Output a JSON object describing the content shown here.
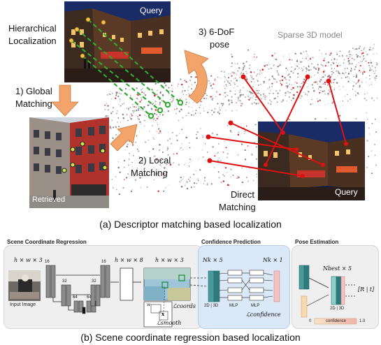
{
  "top": {
    "hierarchical_label_line1": "Hierarchical",
    "hierarchical_label_line2": "Localization",
    "query_tag_top": "Query",
    "global_step_line1": "1) Global",
    "global_step_line2": "Matching",
    "local_step_line1": "2) Local",
    "local_step_line2": "Matching",
    "pose_step_line1": "3) 6-DoF",
    "pose_step_line2": "pose",
    "sparse_model_label": "Sparse 3D model",
    "retrieved_tag": "Retrieved",
    "direct_label_line1": "Direct",
    "direct_label_line2": "Matching",
    "query_tag_bottom": "Query",
    "caption": "(a) Descriptor matching based localization"
  },
  "bottom": {
    "scr_title": "Scene Coordinate Regression",
    "conf_title": "Confidence Prediction",
    "pose_title": "Pose Estimation",
    "input_dim": "h × w × 3",
    "feat_dim": "h × w × 8",
    "out_dim": "h × w × 3",
    "input_image_label": "Input Image",
    "ch16a": "16",
    "ch32a": "32",
    "ch64a": "64",
    "ch64b": "64",
    "ch32b": "32",
    "ch16b": "16",
    "w_label": "w",
    "x_label": "x",
    "smooth_loss": "ℒsmooth",
    "coords_loss": "ℒcoords",
    "nk5": "Nk × 5",
    "nk1": "Nk × 1",
    "twod3d_a": "2D | 3D",
    "mlp_a": "MLP",
    "mlp_b": "MLP",
    "conf_loss": "ℒconfidence",
    "nbest": "Nbest × 5",
    "twod3d_b": "2D | 3D",
    "rt": "[R | t]",
    "conf_zero": "0",
    "conf_word": "confidence",
    "conf_one": "1.0",
    "caption": "(b) Scene coordinate regression based localization"
  },
  "colors": {
    "arrow_orange": "#f2a46a",
    "match_green": "#2fa82f",
    "point_red": "#dd1111",
    "conf_panel": "#dbe8f7",
    "panel_gray": "#efefef"
  }
}
